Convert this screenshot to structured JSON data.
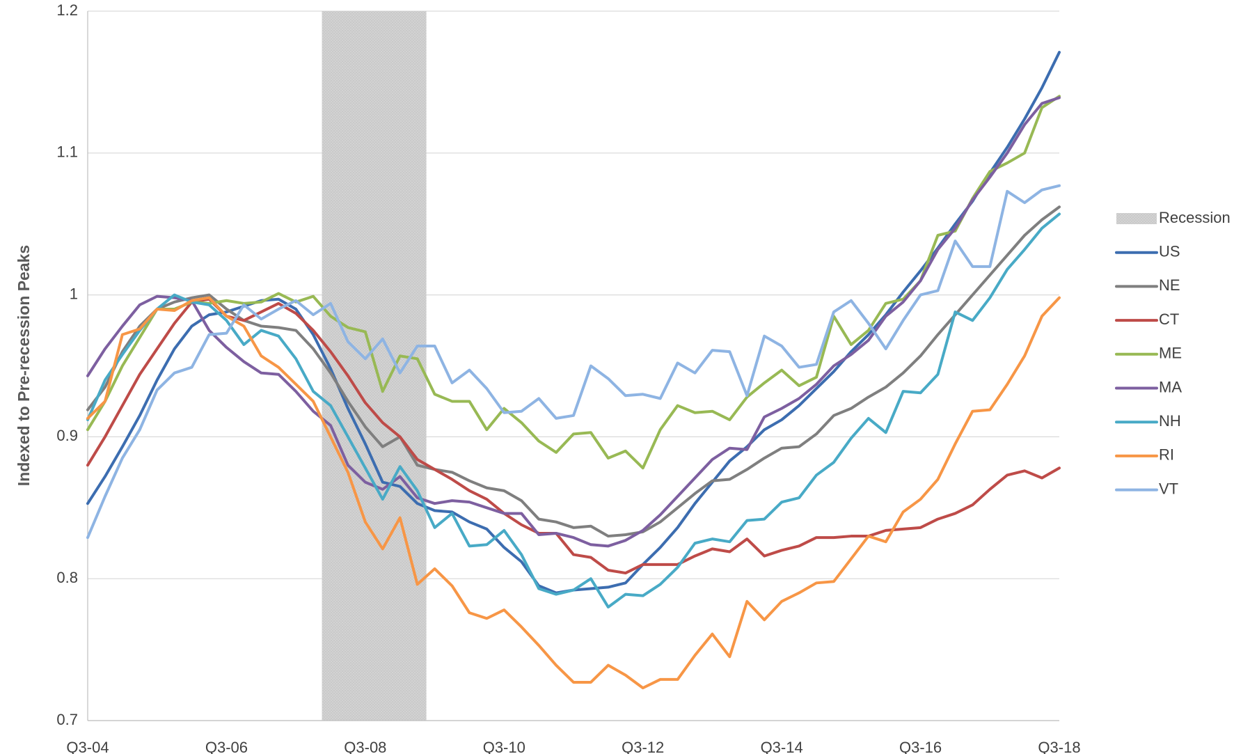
{
  "chart_data": {
    "type": "line",
    "y_axis_label": "Indexed to Pre-recession Peaks",
    "categories": [
      "Q3-04",
      null,
      null,
      null,
      null,
      null,
      null,
      null,
      "Q3-06",
      null,
      null,
      null,
      null,
      null,
      null,
      null,
      "Q3-08",
      null,
      null,
      null,
      null,
      null,
      null,
      null,
      "Q3-10",
      null,
      null,
      null,
      null,
      null,
      null,
      null,
      "Q3-12",
      null,
      null,
      null,
      null,
      null,
      null,
      null,
      "Q3-14",
      null,
      null,
      null,
      null,
      null,
      null,
      null,
      "Q3-16",
      null,
      null,
      null,
      null,
      null,
      null,
      null,
      "Q3-18"
    ],
    "ylim": [
      0.7,
      1.2
    ],
    "yticks": [
      0.7,
      0.8,
      0.9,
      1,
      1.1,
      1.2
    ],
    "grid": true,
    "legend": "right",
    "series": [
      {
        "name": "Recession",
        "type": "bar",
        "color": "#d0d0d0",
        "values": [
          null,
          null,
          null,
          null,
          null,
          null,
          null,
          null,
          null,
          null,
          null,
          null,
          null,
          null,
          1.2,
          1.2,
          1.2,
          1.2,
          1.2,
          1.2,
          null,
          null,
          null,
          null,
          null,
          null,
          null,
          null,
          null,
          null,
          null,
          null,
          null,
          null,
          null,
          null,
          null,
          null,
          null,
          null,
          null,
          null,
          null,
          null,
          null,
          null,
          null,
          null,
          null,
          null,
          null,
          null,
          null,
          null,
          null,
          null,
          null
        ]
      },
      {
        "name": "US",
        "type": "line",
        "color": "#3c6db0",
        "values": [
          0.853,
          0.872,
          0.893,
          0.915,
          0.94,
          0.962,
          0.978,
          0.986,
          0.988,
          0.992,
          0.996,
          0.997,
          0.99,
          0.972,
          0.948,
          0.92,
          0.895,
          0.868,
          0.865,
          0.853,
          0.848,
          0.847,
          0.84,
          0.835,
          0.822,
          0.812,
          0.795,
          0.79,
          0.792,
          0.793,
          0.794,
          0.797,
          0.81,
          0.822,
          0.836,
          0.853,
          0.868,
          0.883,
          0.893,
          0.905,
          0.912,
          0.922,
          0.934,
          0.946,
          0.96,
          0.972,
          0.986,
          1.002,
          1.017,
          1.033,
          1.05,
          1.066,
          1.086,
          1.104,
          1.124,
          1.146,
          1.171
        ]
      },
      {
        "name": "NE",
        "type": "line",
        "color": "#7f7f7f",
        "values": [
          0.919,
          0.935,
          0.96,
          0.978,
          0.99,
          0.995,
          0.998,
          1.0,
          0.99,
          0.982,
          0.978,
          0.977,
          0.975,
          0.962,
          0.945,
          0.925,
          0.907,
          0.893,
          0.9,
          0.88,
          0.877,
          0.875,
          0.869,
          0.864,
          0.862,
          0.855,
          0.842,
          0.84,
          0.836,
          0.837,
          0.83,
          0.831,
          0.833,
          0.84,
          0.85,
          0.86,
          0.869,
          0.87,
          0.877,
          0.885,
          0.892,
          0.893,
          0.902,
          0.915,
          0.92,
          0.928,
          0.935,
          0.945,
          0.957,
          0.972,
          0.986,
          1.0,
          1.014,
          1.028,
          1.042,
          1.053,
          1.062
        ]
      },
      {
        "name": "CT",
        "type": "line",
        "color": "#be4b48",
        "values": [
          0.88,
          0.9,
          0.922,
          0.944,
          0.962,
          0.98,
          0.995,
          0.997,
          0.985,
          0.982,
          0.988,
          0.994,
          0.987,
          0.975,
          0.96,
          0.943,
          0.924,
          0.91,
          0.9,
          0.884,
          0.877,
          0.87,
          0.862,
          0.856,
          0.846,
          0.838,
          0.832,
          0.832,
          0.817,
          0.815,
          0.806,
          0.804,
          0.81,
          0.81,
          0.81,
          0.816,
          0.821,
          0.819,
          0.828,
          0.816,
          0.82,
          0.823,
          0.829,
          0.829,
          0.83,
          0.83,
          0.834,
          0.835,
          0.836,
          0.842,
          0.846,
          0.852,
          0.863,
          0.873,
          0.876,
          0.871,
          0.878
        ]
      },
      {
        "name": "ME",
        "type": "line",
        "color": "#98b954",
        "values": [
          0.905,
          0.925,
          0.95,
          0.97,
          0.99,
          0.99,
          0.995,
          0.994,
          0.996,
          0.994,
          0.995,
          1.001,
          0.995,
          0.999,
          0.985,
          0.977,
          0.974,
          0.932,
          0.957,
          0.955,
          0.93,
          0.925,
          0.925,
          0.905,
          0.92,
          0.91,
          0.897,
          0.889,
          0.902,
          0.903,
          0.885,
          0.89,
          0.878,
          0.905,
          0.922,
          0.917,
          0.918,
          0.912,
          0.928,
          0.938,
          0.947,
          0.936,
          0.942,
          0.985,
          0.965,
          0.975,
          0.994,
          0.997,
          1.01,
          1.042,
          1.045,
          1.068,
          1.087,
          1.093,
          1.1,
          1.132,
          1.14
        ]
      },
      {
        "name": "MA",
        "type": "line",
        "color": "#7d5fa0",
        "values": [
          0.943,
          0.962,
          0.978,
          0.993,
          0.999,
          0.998,
          0.996,
          0.975,
          0.963,
          0.953,
          0.945,
          0.944,
          0.932,
          0.918,
          0.908,
          0.88,
          0.868,
          0.863,
          0.872,
          0.857,
          0.853,
          0.855,
          0.854,
          0.85,
          0.846,
          0.846,
          0.831,
          0.832,
          0.829,
          0.824,
          0.823,
          0.827,
          0.834,
          0.845,
          0.858,
          0.871,
          0.884,
          0.892,
          0.891,
          0.914,
          0.92,
          0.927,
          0.937,
          0.95,
          0.958,
          0.968,
          0.985,
          0.995,
          1.01,
          1.032,
          1.047,
          1.067,
          1.083,
          1.1,
          1.12,
          1.135,
          1.139
        ]
      },
      {
        "name": "NH",
        "type": "line",
        "color": "#48aac6",
        "values": [
          0.912,
          0.94,
          0.958,
          0.975,
          0.99,
          1.0,
          0.995,
          0.993,
          0.982,
          0.965,
          0.975,
          0.971,
          0.955,
          0.932,
          0.922,
          0.9,
          0.878,
          0.856,
          0.879,
          0.862,
          0.836,
          0.846,
          0.823,
          0.824,
          0.834,
          0.817,
          0.793,
          0.789,
          0.792,
          0.8,
          0.78,
          0.789,
          0.788,
          0.796,
          0.808,
          0.825,
          0.828,
          0.826,
          0.841,
          0.842,
          0.854,
          0.857,
          0.873,
          0.882,
          0.899,
          0.913,
          0.903,
          0.932,
          0.931,
          0.944,
          0.988,
          0.982,
          0.998,
          1.018,
          1.032,
          1.047,
          1.057
        ]
      },
      {
        "name": "RI",
        "type": "line",
        "color": "#f79646",
        "values": [
          0.913,
          0.925,
          0.972,
          0.976,
          0.99,
          0.989,
          0.996,
          0.998,
          0.985,
          0.978,
          0.957,
          0.949,
          0.937,
          0.925,
          0.9,
          0.875,
          0.84,
          0.821,
          0.843,
          0.796,
          0.807,
          0.795,
          0.776,
          0.772,
          0.778,
          0.766,
          0.753,
          0.739,
          0.727,
          0.727,
          0.739,
          0.732,
          0.723,
          0.729,
          0.729,
          0.746,
          0.761,
          0.745,
          0.784,
          0.771,
          0.784,
          0.79,
          0.797,
          0.798,
          0.814,
          0.83,
          0.826,
          0.847,
          0.856,
          0.87,
          0.895,
          0.918,
          0.919,
          0.937,
          0.957,
          0.985,
          0.998
        ]
      },
      {
        "name": "VT",
        "type": "line",
        "color": "#8eb4e3",
        "values": [
          0.829,
          0.858,
          0.885,
          0.905,
          0.933,
          0.945,
          0.949,
          0.972,
          0.973,
          0.993,
          0.983,
          0.99,
          0.996,
          0.986,
          0.994,
          0.967,
          0.955,
          0.969,
          0.945,
          0.964,
          0.964,
          0.938,
          0.947,
          0.934,
          0.917,
          0.918,
          0.927,
          0.913,
          0.915,
          0.95,
          0.941,
          0.929,
          0.93,
          0.927,
          0.952,
          0.945,
          0.961,
          0.96,
          0.929,
          0.971,
          0.964,
          0.949,
          0.951,
          0.988,
          0.996,
          0.98,
          0.962,
          0.982,
          1.0,
          1.003,
          1.038,
          1.02,
          1.02,
          1.073,
          1.065,
          1.074,
          1.077
        ]
      }
    ]
  }
}
